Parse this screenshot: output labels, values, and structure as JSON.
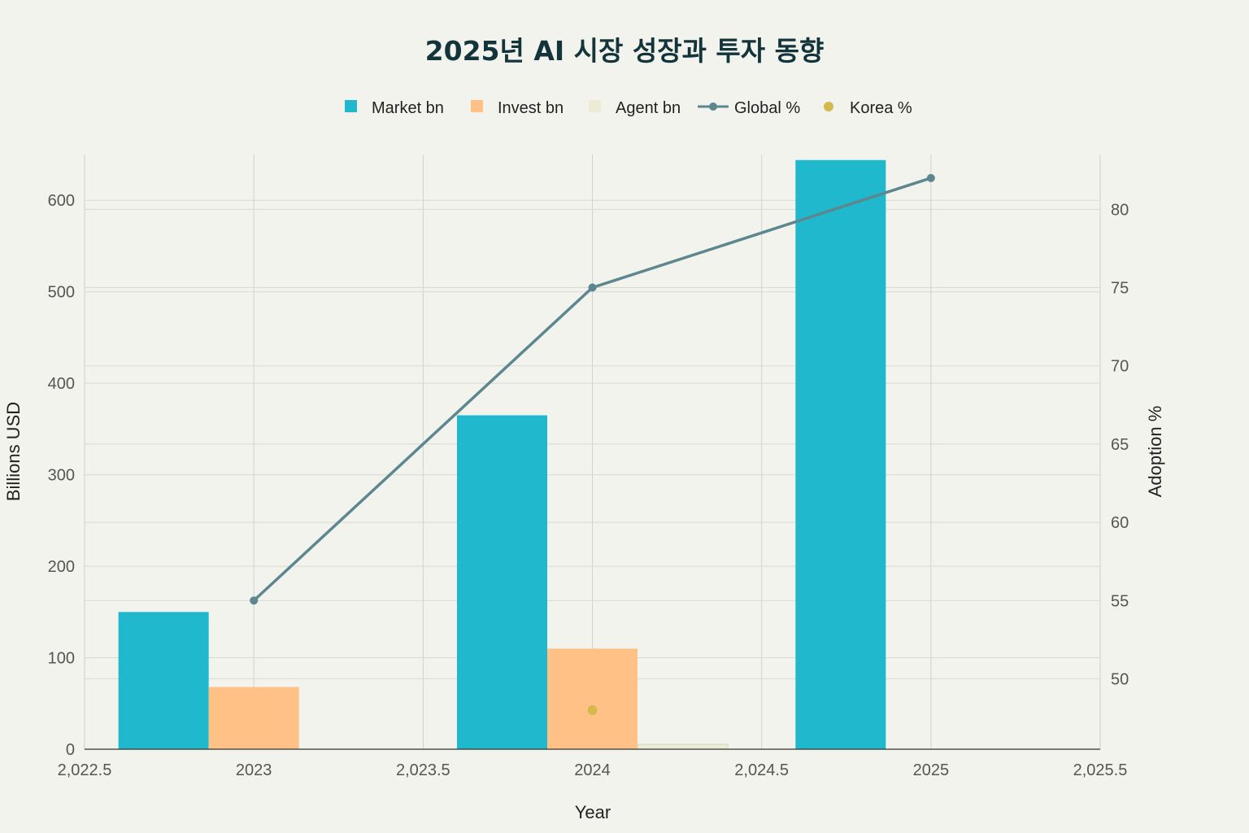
{
  "chart_data": {
    "type": "bar",
    "title": "2025년 AI 시장 성장과 투자 동향",
    "xlabel": "Year",
    "ylabel": "Billions USD",
    "y2label": "Adoption %",
    "xlim": [
      2022.5,
      2025.5
    ],
    "ylim": [
      0,
      650
    ],
    "y2lim": [
      45.5,
      83.5
    ],
    "x_ticks": [
      "2,022.5",
      "2023",
      "2,023.5",
      "2024",
      "2,024.5",
      "2025",
      "2,025.5"
    ],
    "x_tick_values": [
      2022.5,
      2023,
      2023.5,
      2024,
      2024.5,
      2025,
      2025.5
    ],
    "y_ticks": [
      0,
      100,
      200,
      300,
      400,
      500,
      600
    ],
    "y2_ticks": [
      50,
      55,
      60,
      65,
      70,
      75,
      80
    ],
    "categories": [
      2023,
      2024,
      2025
    ],
    "series": [
      {
        "name": "Market bn",
        "kind": "bar",
        "color": "#1fb8cd",
        "values": [
          150,
          365,
          644
        ]
      },
      {
        "name": "Invest bn",
        "kind": "bar",
        "color": "#ffc185",
        "values": [
          68,
          110,
          null
        ]
      },
      {
        "name": "Agent bn",
        "kind": "bar",
        "color": "#ecebd5",
        "values": [
          null,
          5.4,
          null
        ]
      },
      {
        "name": "Global %",
        "kind": "line",
        "axis": "y2",
        "color": "#5d878f",
        "x": [
          2023,
          2024,
          2025
        ],
        "values": [
          55,
          75,
          82
        ]
      },
      {
        "name": "Korea %",
        "kind": "scatter",
        "axis": "y2",
        "color": "#d2ba4c",
        "x": [
          2024
        ],
        "values": [
          48
        ]
      }
    ],
    "legend_position": "top-center"
  }
}
